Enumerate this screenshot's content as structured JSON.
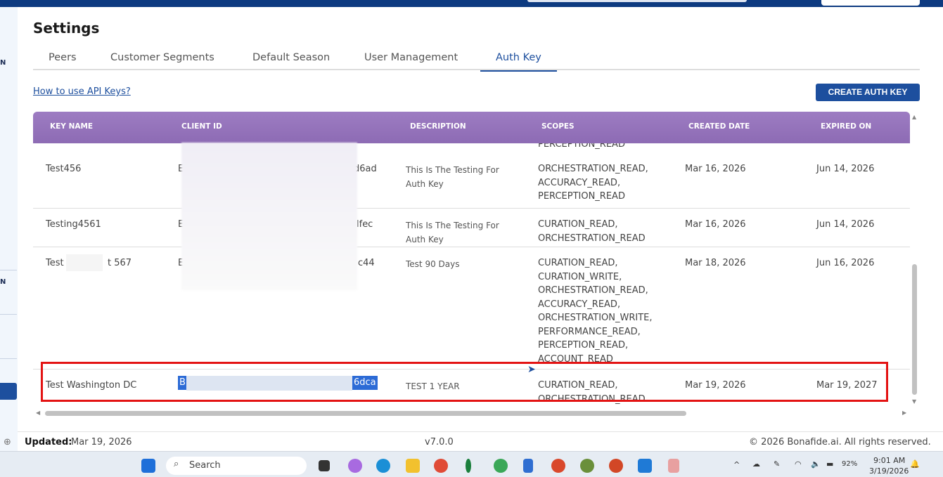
{
  "page": {
    "title": "Settings"
  },
  "tabs": [
    {
      "label": "Peers"
    },
    {
      "label": "Customer Segments"
    },
    {
      "label": "Default Season"
    },
    {
      "label": "User Management"
    },
    {
      "label": "Auth Key",
      "active": true
    }
  ],
  "help_link": "How to use API Keys?",
  "create_button": "CREATE AUTH KEY",
  "table": {
    "headers": [
      "KEY NAME",
      "CLIENT ID",
      "DESCRIPTION",
      "SCOPES",
      "CREATED DATE",
      "EXPIRED ON"
    ],
    "partial_row_scope": "PERCEPTION_READ",
    "rows": [
      {
        "name": "Test456",
        "client_prefix": "E",
        "client_suffix": "d6ad",
        "description": "This Is The Testing For Auth Key",
        "scopes": "ORCHESTRATION_READ,\nACCURACY_READ,\nPERCEPTION_READ",
        "created": "Mar 16, 2026",
        "expires": "Jun 14, 2026"
      },
      {
        "name": "Testing4561",
        "client_prefix": "E",
        "client_suffix": "lfec",
        "description": "This Is The Testing For Auth Key",
        "scopes": "CURATION_READ,\nORCHESTRATION_READ",
        "created": "Mar 16, 2026",
        "expires": "Jun 14, 2026"
      },
      {
        "name_start": "Test",
        "name_end": "t 567",
        "client_prefix": "E",
        "client_suffix": "c44",
        "description": "Test 90 Days",
        "scopes": "CURATION_READ,\nCURATION_WRITE,\nORCHESTRATION_READ,\nACCURACY_READ,\nORCHESTRATION_WRITE,\nPERFORMANCE_READ,\nPERCEPTION_READ,\nACCOUNT_READ",
        "created": "Mar 18, 2026",
        "expires": "Jun 16, 2026"
      },
      {
        "name": "Test Washington DC",
        "client_prefix": "B",
        "client_suffix": "6dca",
        "description": "TEST 1 YEAR",
        "scopes": "CURATION_READ,\nORCHESTRATION_READ",
        "created": "Mar 19, 2026",
        "expires": "Mar 19, 2027",
        "highlighted": true
      }
    ]
  },
  "footer": {
    "updated_label": "Updated:",
    "updated_value": "Mar 19, 2026",
    "version": "v7.0.0",
    "copyright": "© 2026 Bonafide.ai. All rights reserved."
  },
  "taskbar": {
    "search": "Search",
    "battery": "92%",
    "time": "9:01 AM",
    "date": "3/19/2026"
  },
  "colors": {
    "primary": "#1d4f9e",
    "header": "#9d7cc2",
    "highlight": "#e31313"
  }
}
